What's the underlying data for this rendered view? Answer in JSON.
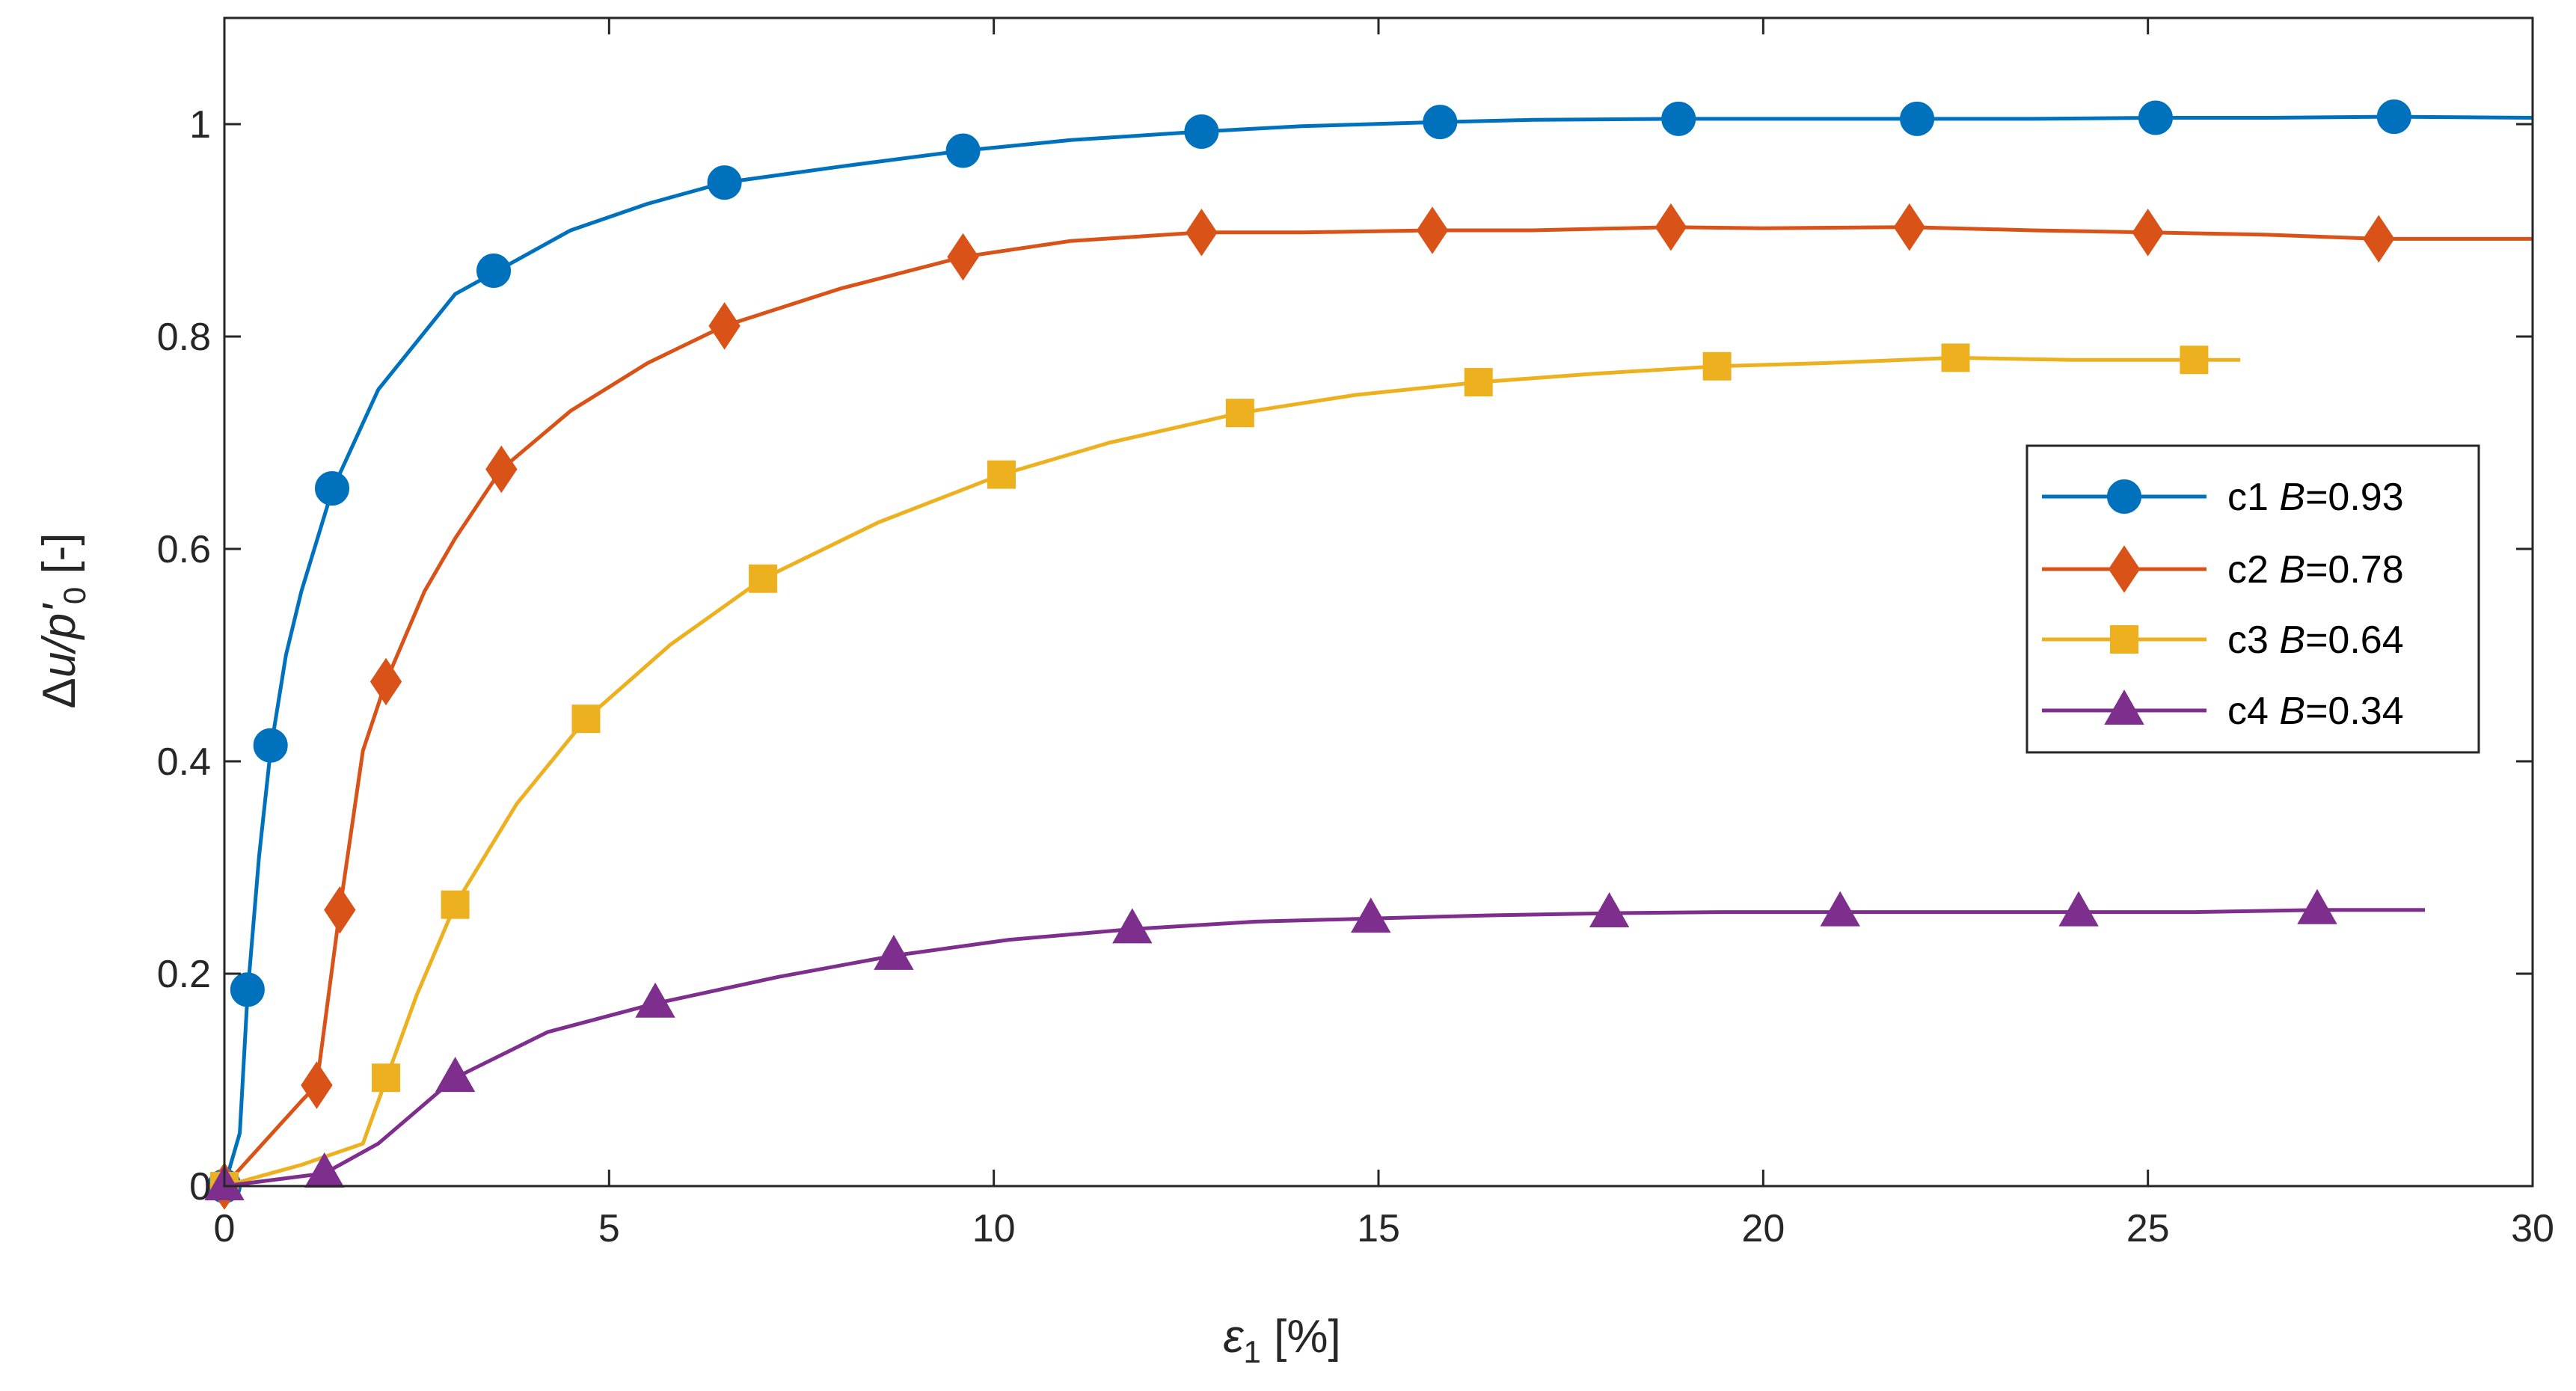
{
  "chart_data": {
    "type": "line",
    "xlabel": {
      "symbol": "ε",
      "sub": "1",
      "unit": " [%]"
    },
    "ylabel": {
      "prefix": "Δ",
      "var": "u/p'",
      "sub": "0",
      "unit": " [-]"
    },
    "xlim": [
      0,
      30
    ],
    "ylim": [
      0,
      1.1
    ],
    "xticks": [
      0,
      5,
      10,
      15,
      20,
      25,
      30
    ],
    "yticks": [
      0,
      0.2,
      0.4,
      0.6,
      0.8,
      1
    ],
    "xtick_labels": [
      "0",
      "5",
      "10",
      "15",
      "20",
      "25",
      "30"
    ],
    "ytick_labels": [
      "0",
      "0.2",
      "0.4",
      "0.6",
      "0.8",
      "1"
    ],
    "grid": false,
    "legend_position": "center-right",
    "series": [
      {
        "name": "c1",
        "param_symbol": "B",
        "param_value": "=0.93",
        "color": "#0072BD",
        "marker": "circle",
        "curve_x": [
          0,
          0.2,
          0.3,
          0.45,
          0.6,
          0.8,
          1.0,
          1.4,
          2.0,
          3.0,
          3.5,
          4.5,
          5.5,
          6.5,
          8.0,
          9.6,
          11.0,
          12.7,
          14.0,
          15.8,
          17.0,
          18.9,
          20.0,
          22.0,
          23.5,
          25.1,
          26.5,
          28.2,
          30.0
        ],
        "curve_y": [
          0.0,
          0.05,
          0.18,
          0.31,
          0.41,
          0.5,
          0.56,
          0.655,
          0.75,
          0.84,
          0.86,
          0.9,
          0.925,
          0.945,
          0.96,
          0.975,
          0.985,
          0.993,
          0.998,
          1.002,
          1.004,
          1.005,
          1.005,
          1.005,
          1.005,
          1.006,
          1.006,
          1.007,
          1.006
        ],
        "marker_x": [
          0,
          0.3,
          0.6,
          1.4,
          3.5,
          6.5,
          9.6,
          12.7,
          15.8,
          18.9,
          22.0,
          25.1,
          28.2
        ],
        "marker_y": [
          0.0,
          0.185,
          0.415,
          0.657,
          0.862,
          0.945,
          0.975,
          0.993,
          1.002,
          1.005,
          1.005,
          1.006,
          1.007
        ]
      },
      {
        "name": "c2",
        "param_symbol": "B",
        "param_value": "=0.78",
        "color": "#D95319",
        "marker": "diamond",
        "curve_x": [
          0,
          0.5,
          1.0,
          1.2,
          1.5,
          1.8,
          2.1,
          2.6,
          3.0,
          3.6,
          4.5,
          5.5,
          6.5,
          8.0,
          9.6,
          11.0,
          12.7,
          14.0,
          15.7,
          17.0,
          18.8,
          20.0,
          21.9,
          23.5,
          25.0,
          26.5,
          28.0,
          30.0
        ],
        "curve_y": [
          0.0,
          0.04,
          0.08,
          0.095,
          0.26,
          0.41,
          0.475,
          0.56,
          0.61,
          0.675,
          0.73,
          0.775,
          0.81,
          0.845,
          0.875,
          0.89,
          0.898,
          0.898,
          0.9,
          0.9,
          0.903,
          0.902,
          0.903,
          0.9,
          0.898,
          0.896,
          0.892,
          0.892
        ],
        "marker_x": [
          0,
          1.2,
          1.5,
          2.1,
          3.6,
          6.5,
          9.6,
          12.7,
          15.7,
          18.8,
          21.9,
          25.0,
          28.0
        ],
        "marker_y": [
          0.0,
          0.095,
          0.26,
          0.475,
          0.675,
          0.81,
          0.875,
          0.898,
          0.9,
          0.903,
          0.903,
          0.898,
          0.892
        ]
      },
      {
        "name": "c3",
        "param_symbol": "B",
        "param_value": "=0.64",
        "color": "#EDB120",
        "marker": "square",
        "curve_x": [
          0,
          1.0,
          1.8,
          2.1,
          2.5,
          3.0,
          3.8,
          4.7,
          5.8,
          7.0,
          8.5,
          10.1,
          11.5,
          13.2,
          14.7,
          16.3,
          17.8,
          19.4,
          20.8,
          22.5,
          24.0,
          25.6,
          26.2
        ],
        "curve_y": [
          0.0,
          0.02,
          0.04,
          0.1,
          0.18,
          0.265,
          0.36,
          0.44,
          0.51,
          0.572,
          0.625,
          0.67,
          0.7,
          0.728,
          0.745,
          0.757,
          0.765,
          0.772,
          0.775,
          0.78,
          0.778,
          0.778,
          0.778
        ],
        "marker_x": [
          0,
          2.1,
          3.0,
          4.7,
          7.0,
          10.1,
          13.2,
          16.3,
          19.4,
          22.5,
          25.6
        ],
        "marker_y": [
          0.0,
          0.102,
          0.265,
          0.44,
          0.572,
          0.67,
          0.728,
          0.757,
          0.772,
          0.78,
          0.778
        ]
      },
      {
        "name": "c4",
        "param_symbol": "B",
        "param_value": "=0.34",
        "color": "#7E2F8E",
        "marker": "triangle",
        "curve_x": [
          0,
          1.3,
          2.0,
          3.0,
          4.2,
          5.6,
          7.2,
          8.7,
          10.2,
          11.8,
          13.4,
          14.9,
          16.5,
          18.0,
          19.5,
          21.0,
          22.6,
          24.1,
          25.6,
          27.2,
          28.6
        ],
        "curve_y": [
          0.0,
          0.012,
          0.04,
          0.102,
          0.145,
          0.172,
          0.197,
          0.217,
          0.232,
          0.242,
          0.249,
          0.252,
          0.255,
          0.257,
          0.258,
          0.258,
          0.258,
          0.258,
          0.258,
          0.26,
          0.26
        ],
        "marker_x": [
          0,
          1.3,
          3.0,
          5.6,
          8.7,
          11.8,
          14.9,
          18.0,
          21.0,
          24.1,
          27.2
        ],
        "marker_y": [
          0.0,
          0.012,
          0.102,
          0.172,
          0.217,
          0.242,
          0.252,
          0.257,
          0.258,
          0.258,
          0.26
        ]
      }
    ]
  }
}
